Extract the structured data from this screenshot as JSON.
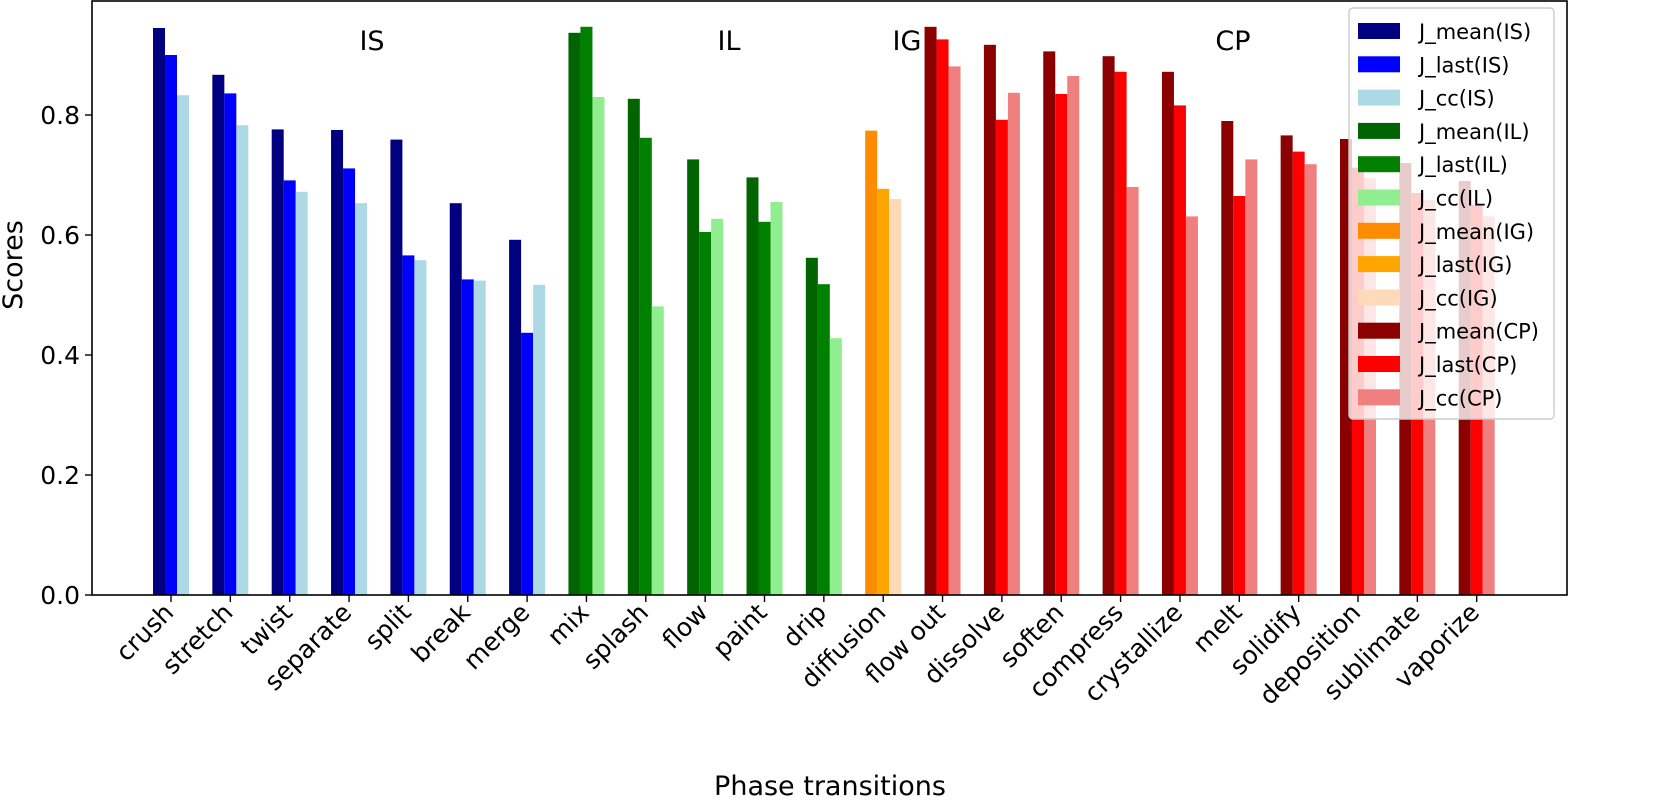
{
  "chart_data": {
    "type": "bar",
    "xlabel": "Phase transitions",
    "ylabel": "Scores",
    "ylim": [
      0,
      0.99
    ],
    "yticks": [
      0.0,
      0.2,
      0.4,
      0.6,
      0.8
    ],
    "ytick_labels": [
      "0.0",
      "0.2",
      "0.4",
      "0.6",
      "0.8"
    ],
    "grid": false,
    "legend_position": "top-right",
    "metrics": [
      "J_mean",
      "J_last",
      "J_cc"
    ],
    "groups": [
      {
        "name": "IS",
        "colors": [
          "#000080",
          "#0000ff",
          "#add8e6"
        ],
        "items": [
          {
            "label": "crush",
            "values": [
              0.945,
              0.9,
              0.833
            ]
          },
          {
            "label": "stretch",
            "values": [
              0.867,
              0.836,
              0.783
            ]
          },
          {
            "label": "twist",
            "values": [
              0.776,
              0.691,
              0.672
            ]
          },
          {
            "label": "separate",
            "values": [
              0.775,
              0.711,
              0.653
            ]
          },
          {
            "label": "split",
            "values": [
              0.759,
              0.566,
              0.558
            ]
          },
          {
            "label": "break",
            "values": [
              0.653,
              0.526,
              0.524
            ]
          },
          {
            "label": "merge",
            "values": [
              0.592,
              0.437,
              0.517
            ]
          }
        ]
      },
      {
        "name": "IL",
        "colors": [
          "#006400",
          "#008000",
          "#90ee90"
        ],
        "items": [
          {
            "label": "mix",
            "values": [
              0.937,
              0.947,
              0.83
            ]
          },
          {
            "label": "splash",
            "values": [
              0.827,
              0.762,
              0.481
            ]
          },
          {
            "label": "flow",
            "values": [
              0.726,
              0.605,
              0.627
            ]
          },
          {
            "label": "paint",
            "values": [
              0.696,
              0.622,
              0.655
            ]
          },
          {
            "label": "drip",
            "values": [
              0.562,
              0.518,
              0.428
            ]
          }
        ]
      },
      {
        "name": "IG",
        "colors": [
          "#ff8c00",
          "#ffa500",
          "#ffdab9"
        ],
        "items": [
          {
            "label": "diffusion",
            "values": [
              0.774,
              0.677,
              0.66
            ]
          }
        ]
      },
      {
        "name": "CP",
        "colors": [
          "#8b0000",
          "#ff0000",
          "#f08080"
        ],
        "items": [
          {
            "label": "flow out",
            "values": [
              0.947,
              0.926,
              0.881
            ]
          },
          {
            "label": "dissolve",
            "values": [
              0.917,
              0.792,
              0.837
            ]
          },
          {
            "label": "soften",
            "values": [
              0.906,
              0.835,
              0.865
            ]
          },
          {
            "label": "compress",
            "values": [
              0.898,
              0.872,
              0.68
            ]
          },
          {
            "label": "crystallize",
            "values": [
              0.872,
              0.816,
              0.631
            ]
          },
          {
            "label": "melt",
            "values": [
              0.79,
              0.665,
              0.726
            ]
          },
          {
            "label": "solidify",
            "values": [
              0.766,
              0.739,
              0.718
            ]
          },
          {
            "label": "deposition",
            "values": [
              0.76,
              0.712,
              0.695
            ]
          },
          {
            "label": "sublimate",
            "values": [
              0.72,
              0.67,
              0.658
            ]
          },
          {
            "label": "vaporize",
            "values": [
              0.69,
              0.65,
              0.631
            ]
          }
        ]
      }
    ],
    "legend": [
      {
        "label": "J_mean(IS)",
        "color": "#000080"
      },
      {
        "label": "J_last(IS)",
        "color": "#0000ff"
      },
      {
        "label": "J_cc(IS)",
        "color": "#add8e6"
      },
      {
        "label": "J_mean(IL)",
        "color": "#006400"
      },
      {
        "label": "J_last(IL)",
        "color": "#008000"
      },
      {
        "label": "J_cc(IL)",
        "color": "#90ee90"
      },
      {
        "label": "J_mean(IG)",
        "color": "#ff8c00"
      },
      {
        "label": "J_last(IG)",
        "color": "#ffa500"
      },
      {
        "label": "J_cc(IG)",
        "color": "#ffdab9"
      },
      {
        "label": "J_mean(CP)",
        "color": "#8b0000"
      },
      {
        "label": "J_last(CP)",
        "color": "#ff0000"
      },
      {
        "label": "J_cc(CP)",
        "color": "#f08080"
      }
    ]
  }
}
